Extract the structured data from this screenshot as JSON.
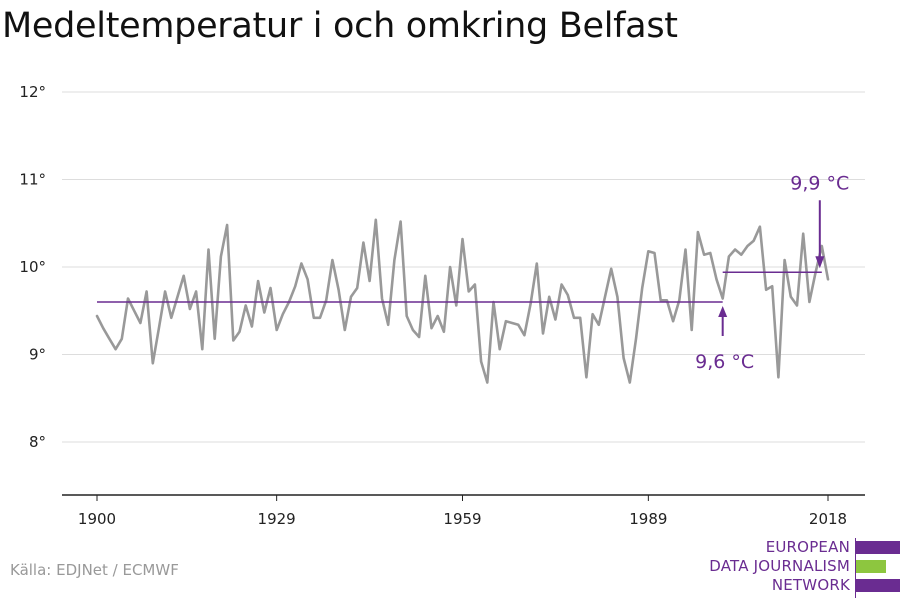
{
  "title": "Medeltemperatur i och omkring Belfast",
  "source": "Källa: EDJNet / ECMWF",
  "logo": {
    "lines": [
      "EUROPEAN",
      "DATA JOURNALISM",
      "NETWORK"
    ]
  },
  "colors": {
    "series": "#999999",
    "accent": "#6a2c91",
    "logo_green": "#8dc63f",
    "grid": "#dddddd",
    "text": "#222222"
  },
  "chart_data": {
    "type": "line",
    "title": "Medeltemperatur i och omkring Belfast",
    "xlabel": "",
    "ylabel": "",
    "xlim": [
      1900,
      2018
    ],
    "ylim": [
      7.4,
      12.1
    ],
    "x_ticks": [
      1900,
      1929,
      1959,
      1989,
      2018
    ],
    "x_tick_labels": [
      "1900",
      "1929",
      "1959",
      "1989",
      "2018"
    ],
    "y_ticks": [
      8,
      9,
      10,
      11,
      12
    ],
    "y_tick_labels": [
      "8°",
      "9°",
      "10°",
      "11°",
      "12°"
    ],
    "grid": "horizontal",
    "series": [
      {
        "x": [
          1900,
          1901,
          1902,
          1903,
          1904,
          1905,
          1906,
          1907,
          1908,
          1909,
          1910,
          1911,
          1912,
          1913,
          1914,
          1915,
          1916,
          1917,
          1918,
          1919,
          1920,
          1921,
          1922,
          1923,
          1924,
          1925,
          1926,
          1927,
          1928,
          1929,
          1930,
          1931,
          1932,
          1933,
          1934,
          1935,
          1936,
          1937,
          1938,
          1939,
          1940,
          1941,
          1942,
          1943,
          1944,
          1945,
          1946,
          1947,
          1948,
          1949,
          1950,
          1951,
          1952,
          1953,
          1954,
          1955,
          1956,
          1957,
          1958,
          1959,
          1960,
          1961,
          1962,
          1963,
          1964,
          1965,
          1966,
          1967,
          1968,
          1969,
          1970,
          1971,
          1972,
          1973,
          1974,
          1975,
          1976,
          1977,
          1978,
          1979,
          1980,
          1981,
          1982,
          1983,
          1984,
          1985,
          1986,
          1987,
          1988,
          1989,
          1990,
          1991,
          1992,
          1993,
          1994,
          1995,
          1996,
          1997,
          1998,
          1999,
          2000,
          2001,
          2002,
          2003,
          2004,
          2005,
          2006,
          2007,
          2008,
          2009,
          2010,
          2011,
          2012,
          2013,
          2014,
          2015,
          2016,
          2017,
          2018
        ],
        "values": [
          9.44,
          9.3,
          9.18,
          9.06,
          9.18,
          9.64,
          9.5,
          9.36,
          9.72,
          8.9,
          9.3,
          9.72,
          9.42,
          9.66,
          9.9,
          9.52,
          9.72,
          9.06,
          10.2,
          9.18,
          10.12,
          10.48,
          9.16,
          9.26,
          9.56,
          9.32,
          9.84,
          9.48,
          9.76,
          9.28,
          9.46,
          9.6,
          9.78,
          10.04,
          9.86,
          9.42,
          9.42,
          9.62,
          10.08,
          9.74,
          9.28,
          9.66,
          9.76,
          10.28,
          9.84,
          10.54,
          9.64,
          9.34,
          10.08,
          10.52,
          9.44,
          9.28,
          9.2,
          9.9,
          9.3,
          9.44,
          9.26,
          10.0,
          9.56,
          10.32,
          9.72,
          9.8,
          8.92,
          8.68,
          9.6,
          9.06,
          9.38,
          9.36,
          9.34,
          9.22,
          9.58,
          10.04,
          9.24,
          9.66,
          9.4,
          9.8,
          9.68,
          9.42,
          9.42,
          8.74,
          9.46,
          9.34,
          9.66,
          9.98,
          9.66,
          8.96,
          8.68,
          9.18,
          9.76,
          10.18,
          10.16,
          9.62,
          9.62,
          9.38,
          9.62,
          10.2,
          9.28,
          10.4,
          10.14,
          10.16,
          9.86,
          9.64,
          10.12,
          10.2,
          10.14,
          10.24,
          10.3,
          10.46,
          9.74,
          9.78,
          8.74,
          10.08,
          9.66,
          9.56,
          10.38,
          9.6,
          9.94,
          10.24,
          9.86
        ]
      }
    ],
    "reference_lines": [
      {
        "label": "9,6 °C",
        "value": 9.6,
        "x_start": 1900,
        "x_end": 2001
      },
      {
        "label": "9,9 °C",
        "value": 9.94,
        "x_start": 2001,
        "x_end": 2017
      }
    ]
  }
}
